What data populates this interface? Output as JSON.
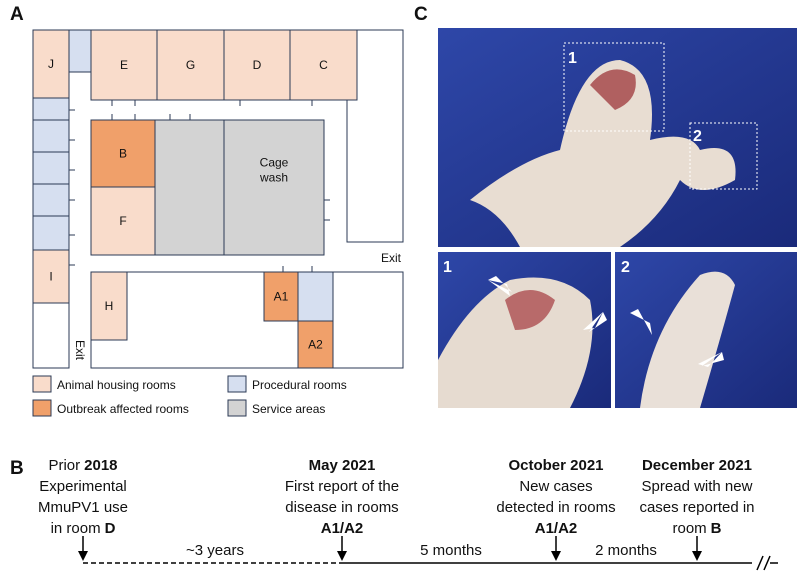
{
  "panels": {
    "a": "A",
    "b": "B",
    "c": "C"
  },
  "floor_plan": {
    "rooms": [
      {
        "lines": [
          "J"
        ],
        "color": "#f9dccb"
      },
      {
        "lines": [
          "E"
        ],
        "color": "#f9dccb"
      },
      {
        "lines": [
          "G"
        ],
        "color": "#f9dccb"
      },
      {
        "lines": [
          "D"
        ],
        "color": "#f9dccb"
      },
      {
        "lines": [
          "C"
        ],
        "color": "#f9dccb"
      },
      {
        "lines": [
          "B"
        ],
        "color": "#f0a06a"
      },
      {
        "lines": [
          "F"
        ],
        "color": "#f9dccb"
      },
      {
        "lines": [
          "Cage",
          "wash"
        ],
        "color": "#d3d3d3"
      },
      {
        "lines": [
          "I"
        ],
        "color": "#f9dccb"
      },
      {
        "lines": [
          "H"
        ],
        "color": "#f9dccb"
      },
      {
        "lines": [
          "A1"
        ],
        "color": "#f0a06a"
      },
      {
        "lines": [
          "A2"
        ],
        "color": "#f0a06a"
      }
    ],
    "exits": [
      "Exit",
      "Exit"
    ],
    "legend": [
      {
        "label": "Animal housing rooms",
        "color": "#f9dccb"
      },
      {
        "label": "Outbreak affected rooms",
        "color": "#f0a06a"
      },
      {
        "label": "Procedural rooms",
        "color": "#d6dff0"
      },
      {
        "label": "Service areas",
        "color": "#d3d3d3"
      }
    ]
  },
  "photos": {
    "labels": [
      "1",
      "2",
      "1",
      "2"
    ]
  },
  "timeline": {
    "events": [
      {
        "lines": [
          [
            {
              "t": "Prior",
              "b": false
            },
            {
              "t": "2018",
              "b": true
            }
          ],
          [
            {
              "t": "Experimental",
              "b": false
            }
          ],
          [
            {
              "t": "MmuPV1 use",
              "b": false
            }
          ],
          [
            {
              "t": "in room",
              "b": false
            },
            {
              "t": "D",
              "b": true
            }
          ]
        ]
      },
      {
        "lines": [
          [
            {
              "t": "May 2021",
              "b": true
            }
          ],
          [
            {
              "t": "First report of the",
              "b": false
            }
          ],
          [
            {
              "t": "disease in rooms",
              "b": false
            }
          ],
          [
            {
              "t": "A1/A2",
              "b": true
            }
          ]
        ]
      },
      {
        "lines": [
          [
            {
              "t": "October 2021",
              "b": true
            }
          ],
          [
            {
              "t": "New cases",
              "b": false
            }
          ],
          [
            {
              "t": "detected in rooms",
              "b": false
            }
          ],
          [
            {
              "t": "A1/A2",
              "b": true
            }
          ]
        ]
      },
      {
        "lines": [
          [
            {
              "t": "December 2021",
              "b": true
            }
          ],
          [
            {
              "t": "Spread with new",
              "b": false
            }
          ],
          [
            {
              "t": "cases reported in",
              "b": false
            }
          ],
          [
            {
              "t": "room",
              "b": false
            },
            {
              "t": "B",
              "b": true
            }
          ]
        ]
      }
    ],
    "durations": [
      "~3 years",
      "5 months",
      "2 months"
    ]
  }
}
